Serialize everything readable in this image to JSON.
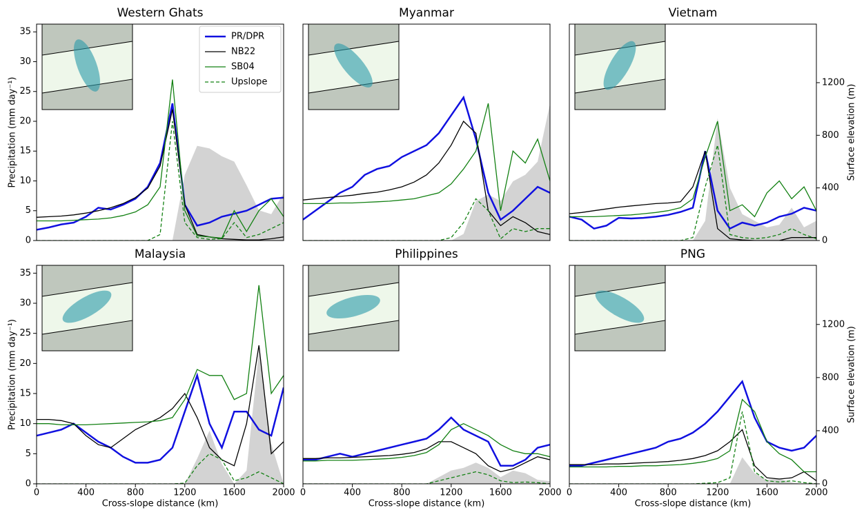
{
  "chart_data": [
    {
      "type": "line",
      "title": "Western Ghats",
      "ylabel": "Precipitation (mm day⁻¹)",
      "legend": "upper right",
      "x": [
        0,
        100,
        200,
        300,
        400,
        500,
        600,
        700,
        800,
        900,
        1000,
        1100,
        1200,
        1300,
        1400,
        1500,
        1600,
        1700,
        1800,
        1900,
        2000
      ],
      "xlim": [
        0,
        2000
      ],
      "ylim": [
        0,
        36.3
      ],
      "y2lim": [
        0,
        1645
      ],
      "yticks": [
        0,
        5,
        10,
        15,
        20,
        25,
        30,
        35
      ],
      "series": [
        {
          "color": "#d3d3d3",
          "axis": "y2",
          "style": "area",
          "values": [
            0,
            0,
            0,
            0,
            0,
            0,
            0,
            0,
            0,
            0,
            0,
            0,
            500,
            720,
            700,
            640,
            600,
            420,
            230,
            200,
            360
          ]
        },
        {
          "name": "PR/DPR",
          "color": "#1010e0",
          "style": "thick",
          "values": [
            1.8,
            2.2,
            2.7,
            3,
            4,
            5.5,
            5.2,
            6,
            7,
            9,
            13,
            23,
            6,
            2.5,
            3,
            4,
            4.5,
            5,
            6,
            7,
            7.2
          ]
        },
        {
          "name": "NB22",
          "color": "#000000",
          "style": "solid",
          "values": [
            3.9,
            4,
            4.1,
            4.3,
            4.6,
            5,
            5.5,
            6.2,
            7.2,
            8.8,
            12.5,
            22,
            6,
            1,
            0.6,
            0.3,
            0.2,
            0.1,
            0.1,
            0.3,
            0.6
          ]
        },
        {
          "name": "SB04",
          "color": "#128012",
          "style": "solid",
          "values": [
            3.3,
            3.3,
            3.3,
            3.4,
            3.5,
            3.6,
            3.8,
            4.2,
            4.8,
            6,
            9,
            27,
            5,
            0.8,
            0.6,
            0.4,
            5,
            1.5,
            5,
            7,
            4
          ]
        },
        {
          "name": "Upslope",
          "color": "#128012",
          "style": "dashed",
          "values": [
            0,
            0,
            0,
            0,
            0,
            0,
            0,
            0,
            0,
            0,
            1,
            20,
            3,
            0.5,
            0.2,
            0.3,
            3,
            0.5,
            1,
            2,
            3
          ]
        }
      ]
    },
    {
      "type": "line",
      "title": "Myanmar",
      "x": [
        0,
        100,
        200,
        300,
        400,
        500,
        600,
        700,
        800,
        900,
        1000,
        1100,
        1200,
        1300,
        1400,
        1500,
        1600,
        1700,
        1800,
        1900,
        2000
      ],
      "xlim": [
        0,
        2000
      ],
      "ylim": [
        0,
        36.3
      ],
      "y2lim": [
        0,
        1645
      ],
      "series": [
        {
          "color": "#d3d3d3",
          "axis": "y2",
          "style": "area",
          "values": [
            0,
            0,
            0,
            0,
            0,
            0,
            0,
            0,
            0,
            0,
            0,
            0,
            0,
            50,
            300,
            350,
            300,
            450,
            500,
            600,
            1040
          ]
        },
        {
          "color": "#1010e0",
          "style": "thick",
          "values": [
            3.5,
            5,
            6.5,
            8,
            9,
            11,
            12,
            12.5,
            14,
            15,
            16,
            18,
            21,
            24,
            17,
            8,
            3.5,
            5,
            7,
            9,
            8
          ]
        },
        {
          "color": "#000000",
          "style": "solid",
          "values": [
            6.8,
            7,
            7.2,
            7.4,
            7.6,
            7.9,
            8.1,
            8.5,
            9,
            9.8,
            11,
            13,
            16,
            20,
            18,
            5,
            2.5,
            4,
            3,
            1.5,
            1
          ]
        },
        {
          "color": "#128012",
          "style": "solid",
          "values": [
            6.2,
            6.2,
            6.2,
            6.3,
            6.3,
            6.4,
            6.5,
            6.6,
            6.8,
            7,
            7.5,
            8,
            9.5,
            12,
            15,
            23,
            5,
            15,
            13,
            17,
            10
          ]
        },
        {
          "color": "#128012",
          "style": "dashed",
          "values": [
            0,
            0,
            0,
            0,
            0,
            0,
            0,
            0,
            0,
            0,
            0,
            0,
            0.5,
            3,
            7,
            5,
            0.3,
            2,
            1.5,
            2,
            2
          ]
        }
      ]
    },
    {
      "type": "line",
      "title": "Vietnam",
      "y2label": "Surface elevation (m)",
      "x": [
        0,
        100,
        200,
        300,
        400,
        500,
        600,
        700,
        800,
        900,
        1000,
        1100,
        1200,
        1300,
        1400,
        1500,
        1600,
        1700,
        1800,
        1900,
        2000
      ],
      "xlim": [
        0,
        2000
      ],
      "ylim": [
        0,
        36.3
      ],
      "y2lim": [
        0,
        1645
      ],
      "y2ticks": [
        0,
        400,
        800,
        1200
      ],
      "series": [
        {
          "color": "#d3d3d3",
          "axis": "y2",
          "style": "area",
          "values": [
            0,
            0,
            0,
            0,
            0,
            0,
            0,
            0,
            0,
            0,
            0,
            150,
            930,
            400,
            200,
            150,
            100,
            120,
            250,
            100,
            150
          ]
        },
        {
          "color": "#1010e0",
          "style": "thick",
          "values": [
            4,
            3.5,
            2,
            2.5,
            3.8,
            3.7,
            3.8,
            4,
            4.3,
            4.8,
            5.5,
            15,
            5,
            2,
            3,
            2.5,
            3,
            4,
            4.5,
            5.5,
            5
          ]
        },
        {
          "color": "#000000",
          "style": "solid",
          "values": [
            4.5,
            4.7,
            5,
            5.3,
            5.6,
            5.8,
            6,
            6.2,
            6.3,
            6.5,
            9,
            15,
            2,
            0.3,
            0.1,
            0,
            0,
            0,
            0.5,
            0.5,
            0.5
          ]
        },
        {
          "color": "#128012",
          "style": "solid",
          "values": [
            4,
            4,
            4,
            4.1,
            4.2,
            4.3,
            4.5,
            4.7,
            5,
            5.5,
            7,
            14,
            20,
            5,
            6,
            4,
            8,
            10,
            7,
            9,
            5
          ]
        },
        {
          "color": "#128012",
          "style": "dashed",
          "values": [
            0,
            0,
            0,
            0,
            0,
            0,
            0,
            0,
            0,
            0,
            0.5,
            9,
            16,
            1,
            0.5,
            0.3,
            0.5,
            1,
            2,
            1,
            0.3
          ]
        }
      ]
    },
    {
      "type": "line",
      "title": "Malaysia",
      "ylabel": "Precipitation (mm day⁻¹)",
      "xlabel": "Cross-slope distance (km)",
      "x": [
        0,
        100,
        200,
        300,
        400,
        500,
        600,
        700,
        800,
        900,
        1000,
        1100,
        1200,
        1300,
        1400,
        1500,
        1600,
        1700,
        1800,
        1900,
        2000
      ],
      "xlim": [
        0,
        2000
      ],
      "ylim": [
        0,
        36.3
      ],
      "y2lim": [
        0,
        1645
      ],
      "yticks": [
        0,
        5,
        10,
        15,
        20,
        25,
        30,
        35
      ],
      "xticks": [
        0,
        400,
        800,
        1200,
        1600,
        2000
      ],
      "series": [
        {
          "color": "#d3d3d3",
          "axis": "y2",
          "style": "area",
          "values": [
            0,
            0,
            0,
            0,
            0,
            0,
            0,
            0,
            0,
            0,
            0,
            0,
            0,
            190,
            400,
            150,
            0,
            100,
            1000,
            300,
            0
          ]
        },
        {
          "color": "#1010e0",
          "style": "thick",
          "values": [
            8,
            8.5,
            9,
            10,
            8.5,
            7,
            6,
            4.5,
            3.5,
            3.5,
            4,
            6,
            12,
            18,
            10,
            6,
            12,
            12,
            9,
            8,
            16
          ]
        },
        {
          "color": "#000000",
          "style": "solid",
          "values": [
            10.7,
            10.7,
            10.5,
            10,
            8,
            6.5,
            6,
            7.5,
            9,
            10,
            11,
            12.5,
            15,
            11,
            6,
            4,
            3,
            10,
            23,
            5,
            7
          ]
        },
        {
          "color": "#128012",
          "style": "solid",
          "values": [
            10,
            10,
            9.8,
            9.8,
            9.8,
            9.9,
            10,
            10.1,
            10.2,
            10.3,
            10.5,
            11,
            14,
            19,
            18,
            18,
            14,
            15,
            33,
            15,
            18
          ]
        },
        {
          "color": "#128012",
          "style": "dashed",
          "values": [
            0,
            0,
            0,
            0,
            0,
            0,
            0,
            0,
            0,
            0,
            0,
            0,
            0.1,
            3,
            5,
            4,
            0.5,
            1,
            2,
            1,
            0
          ]
        }
      ]
    },
    {
      "type": "line",
      "title": "Philippines",
      "xlabel": "Cross-slope distance (km)",
      "x": [
        0,
        100,
        200,
        300,
        400,
        500,
        600,
        700,
        800,
        900,
        1000,
        1100,
        1200,
        1300,
        1400,
        1500,
        1600,
        1700,
        1800,
        1900,
        2000
      ],
      "xlim": [
        0,
        2000
      ],
      "ylim": [
        0,
        36.3
      ],
      "y2lim": [
        0,
        1645
      ],
      "xticks": [
        0,
        400,
        800,
        1200,
        1600,
        2000
      ],
      "series": [
        {
          "color": "#d3d3d3",
          "axis": "y2",
          "style": "area",
          "values": [
            0,
            0,
            0,
            0,
            0,
            0,
            0,
            0,
            0,
            0,
            0,
            50,
            100,
            120,
            160,
            120,
            50,
            100,
            80,
            30,
            20
          ]
        },
        {
          "color": "#1010e0",
          "style": "thick",
          "values": [
            4,
            4,
            4.5,
            5,
            4.5,
            5,
            5.5,
            6,
            6.5,
            7,
            7.5,
            9,
            11,
            9,
            8,
            7,
            3,
            3,
            4,
            6,
            6.5
          ]
        },
        {
          "color": "#000000",
          "style": "solid",
          "values": [
            4.2,
            4.2,
            4.3,
            4.3,
            4.4,
            4.5,
            4.6,
            4.7,
            4.9,
            5.2,
            5.8,
            7,
            7,
            6,
            5,
            3,
            2,
            2.5,
            3.5,
            4.5,
            4
          ]
        },
        {
          "color": "#128012",
          "style": "solid",
          "values": [
            3.8,
            3.8,
            3.9,
            3.9,
            3.9,
            4,
            4.1,
            4.2,
            4.4,
            4.7,
            5.2,
            6.5,
            9,
            10,
            9,
            8,
            6.5,
            5.5,
            5,
            5,
            4.5
          ]
        },
        {
          "color": "#128012",
          "style": "dashed",
          "values": [
            0,
            0,
            0,
            0,
            0,
            0,
            0,
            0,
            0,
            0,
            0,
            0.5,
            1,
            1.5,
            2,
            1.5,
            0.5,
            0.2,
            0.3,
            0.2,
            0
          ]
        }
      ]
    },
    {
      "type": "line",
      "title": "PNG",
      "xlabel": "Cross-slope distance (km)",
      "y2label": "Surface elevation (m)",
      "x": [
        0,
        100,
        200,
        300,
        400,
        500,
        600,
        700,
        800,
        900,
        1000,
        1100,
        1200,
        1300,
        1400,
        1500,
        1600,
        1700,
        1800,
        1900,
        2000
      ],
      "xlim": [
        0,
        2000
      ],
      "ylim": [
        0,
        36.3
      ],
      "y2lim": [
        0,
        1645
      ],
      "xticks": [
        0,
        400,
        800,
        1200,
        1600,
        2000
      ],
      "y2ticks": [
        0,
        400,
        800,
        1200
      ],
      "series": [
        {
          "color": "#d3d3d3",
          "axis": "y2",
          "style": "area",
          "values": [
            0,
            0,
            0,
            0,
            0,
            0,
            0,
            0,
            0,
            0,
            0,
            0,
            0,
            0,
            200,
            80,
            30,
            40,
            10,
            0,
            0
          ]
        },
        {
          "color": "#1010e0",
          "style": "thick",
          "values": [
            3,
            3,
            3.5,
            4,
            4.5,
            5,
            5.5,
            6,
            7,
            7.5,
            8.5,
            10,
            12,
            14.5,
            17,
            11,
            7,
            6,
            5.5,
            6,
            8
          ]
        },
        {
          "color": "#000000",
          "style": "solid",
          "values": [
            3.2,
            3.2,
            3.2,
            3.3,
            3.3,
            3.4,
            3.5,
            3.6,
            3.7,
            3.9,
            4.2,
            4.7,
            5.5,
            7,
            9,
            3,
            1,
            0.8,
            1,
            2,
            0.5
          ]
        },
        {
          "color": "#128012",
          "style": "solid",
          "values": [
            2.8,
            2.8,
            2.8,
            2.8,
            2.9,
            2.9,
            3,
            3,
            3.1,
            3.2,
            3.4,
            3.7,
            4.2,
            5.5,
            14,
            12,
            7,
            5,
            4,
            2,
            2
          ]
        },
        {
          "color": "#128012",
          "style": "dashed",
          "values": [
            0,
            0,
            0,
            0,
            0,
            0,
            0,
            0,
            0,
            0,
            0,
            0.1,
            0.2,
            1,
            12,
            2,
            0.5,
            0.3,
            0.5,
            0.2,
            0
          ]
        }
      ]
    }
  ]
}
